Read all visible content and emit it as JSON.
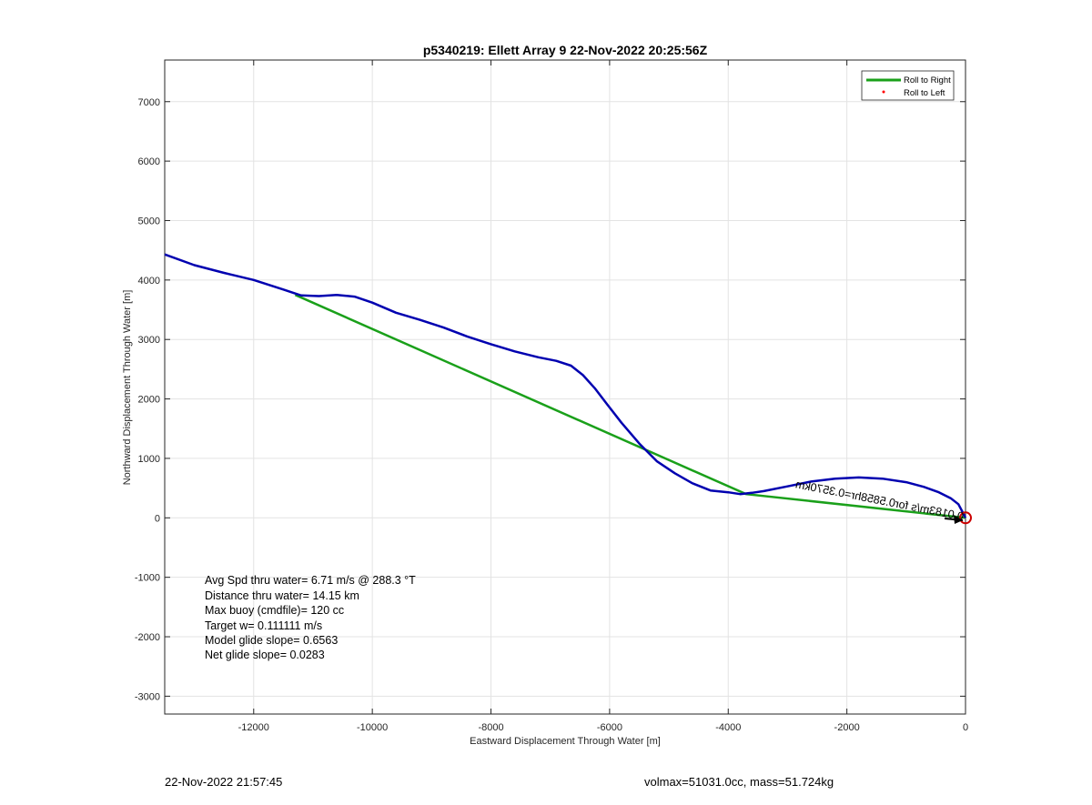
{
  "chart_data": {
    "type": "line",
    "title": "p5340219: Ellett Array 9 22-Nov-2022 20:25:56Z",
    "xlabel": "Eastward Displacement Through Water [m]",
    "ylabel": "Northward Displacement Through Water [m]",
    "xlim": [
      -13500,
      0
    ],
    "ylim": [
      -3300,
      7700
    ],
    "x_ticks": [
      -12000,
      -10000,
      -8000,
      -6000,
      -4000,
      -2000,
      0
    ],
    "x_tick_labels": [
      "-12000",
      "-10000",
      "-8000",
      "-6000",
      "-4000",
      "-2000",
      "0"
    ],
    "y_ticks": [
      -3000,
      -2000,
      -1000,
      0,
      1000,
      2000,
      3000,
      4000,
      5000,
      6000,
      7000
    ],
    "y_tick_labels": [
      "-3000",
      "-2000",
      "-1000",
      "0",
      "1000",
      "2000",
      "3000",
      "4000",
      "5000",
      "6000",
      "7000"
    ],
    "grid": true,
    "legend_position": "top-right",
    "series": [
      {
        "name": "Roll to Right",
        "color": "#1aa01a",
        "x": [
          -11300,
          -3700,
          0
        ],
        "y": [
          3750,
          400,
          0
        ]
      },
      {
        "name": "Roll to Left",
        "color": "#ff0000",
        "marker": "dot",
        "x": [],
        "y": []
      },
      {
        "color": "#0000b0",
        "x": [
          -13500,
          -13000,
          -12500,
          -12000,
          -11500,
          -11200,
          -10900,
          -10600,
          -10300,
          -10000,
          -9600,
          -9200,
          -8800,
          -8400,
          -8000,
          -7600,
          -7200,
          -6900,
          -6650,
          -6450,
          -6250,
          -6050,
          -5800,
          -5500,
          -5200,
          -4900,
          -4600,
          -4300,
          -4000,
          -3800,
          -3600,
          -3400,
          -3000,
          -2600,
          -2200,
          -1800,
          -1400,
          -1000,
          -700,
          -450,
          -250,
          -120,
          -50,
          0
        ],
        "y": [
          4430,
          4250,
          4120,
          4000,
          3840,
          3740,
          3730,
          3750,
          3720,
          3620,
          3450,
          3330,
          3200,
          3050,
          2920,
          2800,
          2700,
          2640,
          2560,
          2400,
          2180,
          1920,
          1600,
          1250,
          950,
          750,
          580,
          460,
          430,
          400,
          420,
          450,
          530,
          610,
          660,
          680,
          660,
          600,
          520,
          430,
          330,
          230,
          100,
          0
        ]
      }
    ],
    "current_arrow": {
      "label": "0.0183m/s for0.5858hr=0.3570km",
      "color": "#000000"
    },
    "end_marker": {
      "x": 0,
      "y": 0,
      "color": "#cc0000"
    },
    "annotations": [
      "Avg Spd thru water=  6.71 m/s @ 288.3 °T",
      "Distance thru water= 14.15 km",
      "Max buoy (cmdfile)= 120 cc",
      "Target w= 0.111111 m/s",
      "Model glide slope= 0.6563",
      "Net glide slope= 0.0283"
    ]
  },
  "footer": {
    "timestamp": "22-Nov-2022 21:57:45",
    "stats": "volmax=51031.0cc, mass=51.724kg"
  }
}
